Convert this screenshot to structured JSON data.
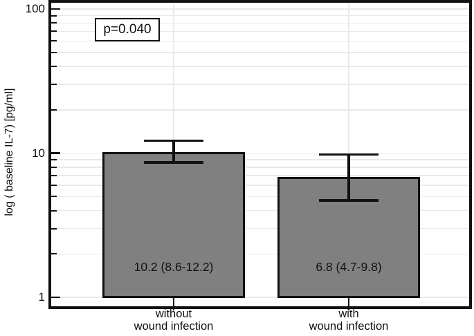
{
  "chart_data": {
    "type": "bar",
    "title": "",
    "ylabel": "log ( baseline IL-7) [pg/ml]",
    "xlabel": "",
    "yscale": "log",
    "ylim": [
      1,
      100
    ],
    "yticks_major": [
      1,
      10,
      100
    ],
    "ytick_labels": [
      "1",
      "10",
      "100"
    ],
    "yticks_minor": [
      2,
      3,
      4,
      5,
      6,
      7,
      8,
      9,
      20,
      30,
      40,
      50,
      60,
      70,
      80,
      90
    ],
    "grid": true,
    "legend": "none",
    "annotation": "p=0.040",
    "categories": [
      {
        "line1": "without",
        "line2": "wound infection"
      },
      {
        "line1": "with",
        "line2": "wound infection"
      }
    ],
    "values": [
      10.2,
      6.8
    ],
    "ci_low": [
      8.6,
      4.7
    ],
    "ci_high": [
      12.2,
      9.8
    ],
    "bar_labels": [
      "10.2 (8.6-12.2)",
      "6.8 (4.7-9.8)"
    ],
    "colors": {
      "bar_fill": "#808080",
      "bar_border": "#111111",
      "grid": "#e9e9e9",
      "axis": "#111111",
      "text": "#111111",
      "background": "#ffffff"
    }
  }
}
